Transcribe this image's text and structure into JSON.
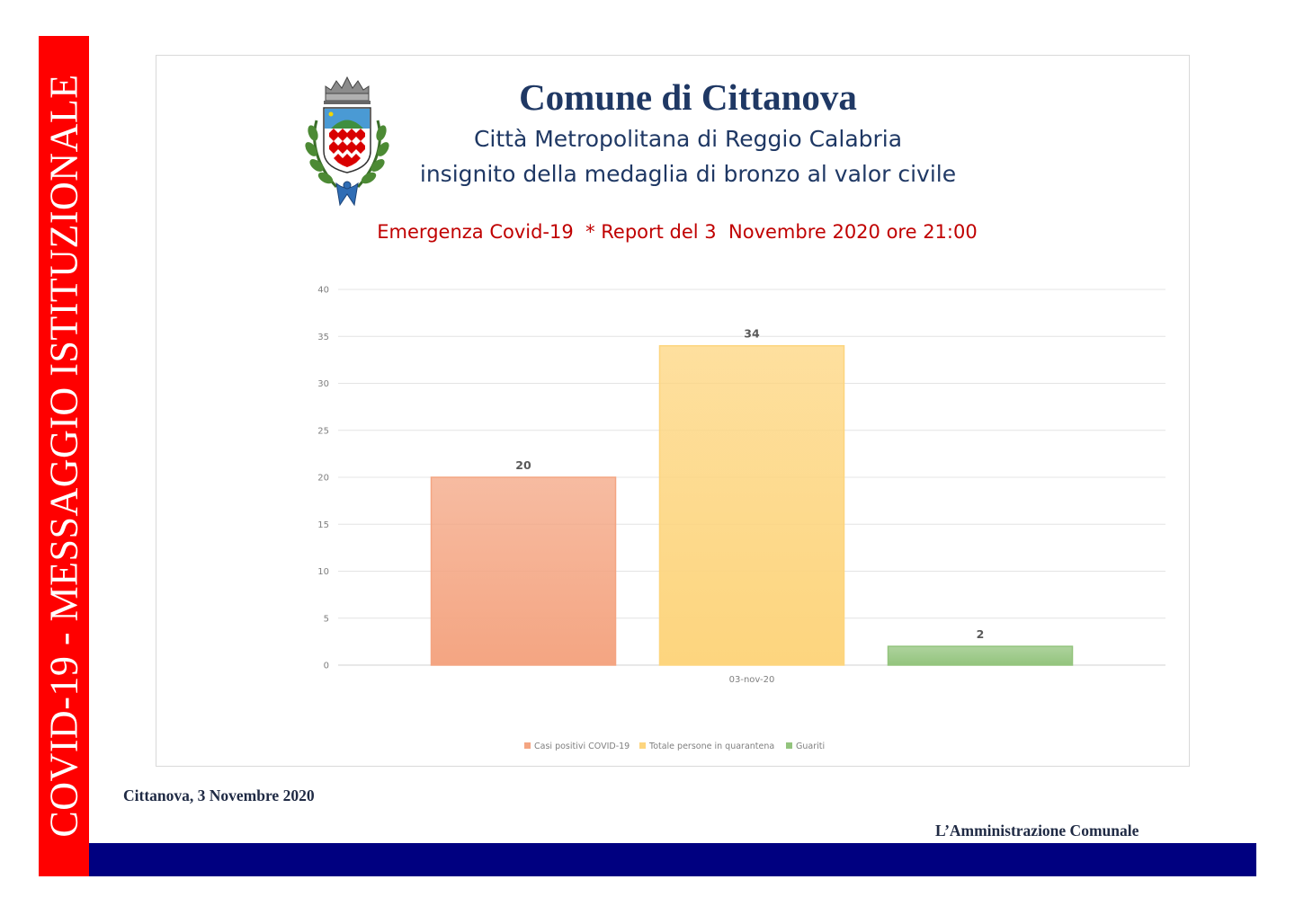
{
  "sidebar": {
    "text": "COVID-19 - MESSAGGIO ISTITUZIONALE",
    "color": "#ff0000"
  },
  "header": {
    "title": "Comune di Cittanova",
    "subtitle1": "Città Metropolitana di Reggio Calabria",
    "subtitle2": "insignito della medaglia di bronzo al valor civile",
    "report": "Emergenza Covid-19  * Report del 3  Novembre 2020 ore 21:00",
    "title_color": "#1f3864",
    "report_color": "#c00000"
  },
  "crest": {
    "icon": "coat-of-arms-icon"
  },
  "chart_data": {
    "type": "bar",
    "title": "",
    "xlabel": "",
    "ylabel": "",
    "categories": [
      "03-nov-20"
    ],
    "ylim": [
      0,
      40
    ],
    "yticks": [
      0,
      5,
      10,
      15,
      20,
      25,
      30,
      35,
      40
    ],
    "grid": true,
    "legend_position": "bottom",
    "series": [
      {
        "name": "Casi positivi COVID-19",
        "values": [
          20
        ],
        "color": "#f4a582"
      },
      {
        "name": "Totale persone in quarantena",
        "values": [
          34
        ],
        "color": "#fdd57e"
      },
      {
        "name": "Guariti",
        "values": [
          2
        ],
        "color": "#93c47d"
      }
    ]
  },
  "footer": {
    "date": "Cittanova, 3 Novembre 2020",
    "signature": "L’Amministrazione Comunale",
    "bar_color": "#000080"
  }
}
